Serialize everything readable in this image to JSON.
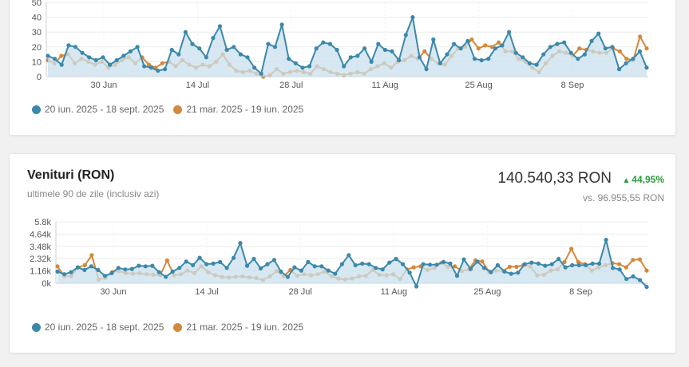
{
  "colors": {
    "current": "#3b88ab",
    "previous": "#d4883a",
    "area": "#c9e0ee",
    "positive": "#2a9d3a"
  },
  "legend": {
    "current": "20 iun. 2025 - 18 sept. 2025",
    "previous": "21 mar. 2025 - 19 iun. 2025"
  },
  "card2": {
    "title": "Venituri (RON)",
    "subtitle": "ultimele 90 de zile (inclusiv azi)",
    "value": "140.540,33 RON",
    "change": "44,95%",
    "compare": "vs. 96.955,55 RON"
  },
  "chart_data": [
    {
      "type": "line",
      "x_tick_labels": [
        "30 Jun",
        "14 Jul",
        "28 Jul",
        "11 Aug",
        "25 Aug",
        "8 Sep"
      ],
      "y_tick_labels": [
        "0",
        "10",
        "20",
        "30",
        "40",
        "50"
      ],
      "ylim": [
        0,
        50
      ],
      "grid": true,
      "legend_position": "bottom-left",
      "series": [
        {
          "name": "20 iun. 2025 - 18 sept. 2025",
          "area": true,
          "values": [
            14,
            12,
            8,
            21,
            20,
            16,
            13,
            11,
            13,
            8,
            11,
            14,
            17,
            20,
            7,
            6,
            4,
            5,
            18,
            15,
            30,
            22,
            19,
            13,
            26,
            34,
            18,
            20,
            15,
            13,
            6,
            2,
            22,
            20,
            35,
            12,
            9,
            6,
            7,
            19,
            23,
            22,
            18,
            7,
            13,
            14,
            19,
            10,
            22,
            18,
            17,
            11,
            28,
            40,
            13,
            5,
            25,
            9,
            15,
            22,
            19,
            24,
            12,
            11,
            12,
            19,
            21,
            30,
            16,
            13,
            9,
            8,
            15,
            20,
            22,
            23,
            16,
            12,
            15,
            24,
            29,
            19,
            20,
            5,
            9,
            12,
            17,
            6
          ]
        },
        {
          "name": "21 mar. 2025 - 19 iun. 2025",
          "area": false,
          "values": [
            11,
            9,
            14,
            15,
            9,
            12,
            10,
            8,
            10,
            6,
            8,
            11,
            13,
            9,
            13,
            8,
            6,
            9,
            10,
            7,
            11,
            8,
            6,
            8,
            7,
            10,
            15,
            8,
            4,
            3,
            4,
            2,
            0,
            1,
            5,
            2,
            3,
            4,
            3,
            2,
            7,
            5,
            3,
            2,
            1,
            2,
            3,
            2,
            5,
            7,
            9,
            6,
            10,
            11,
            14,
            12,
            17,
            12,
            9,
            8,
            14,
            19,
            20,
            25,
            19,
            21,
            20,
            23,
            17,
            17,
            12,
            10,
            6,
            3,
            9,
            14,
            17,
            16,
            14,
            19,
            18,
            17,
            16,
            16,
            19,
            17,
            12,
            11,
            27,
            19
          ]
        }
      ]
    },
    {
      "type": "line",
      "x_tick_labels": [
        "30 Jun",
        "14 Jul",
        "28 Jul",
        "11 Aug",
        "25 Aug",
        "8 Sep"
      ],
      "y_tick_labels": [
        "0k",
        "1.16k",
        "2.32k",
        "3.48k",
        "4.64k",
        "5.8k"
      ],
      "ylim": [
        0,
        5800
      ],
      "grid": true,
      "legend_position": "bottom-left",
      "series": [
        {
          "name": "20 iun. 2025 - 18 sept. 2025",
          "area": true,
          "values": [
            1100,
            850,
            1050,
            1500,
            1250,
            1600,
            1250,
            700,
            950,
            1450,
            1300,
            1350,
            1650,
            1600,
            1650,
            1050,
            600,
            1100,
            1450,
            2050,
            1700,
            2400,
            1800,
            1850,
            2000,
            1450,
            2400,
            3800,
            1650,
            2300,
            1400,
            1800,
            2200,
            1100,
            600,
            1500,
            1200,
            2000,
            1600,
            1600,
            1200,
            900,
            1800,
            2650,
            1700,
            1850,
            1800,
            1450,
            1300,
            1950,
            2300,
            1800,
            1000,
            -300,
            1800,
            1750,
            1750,
            2000,
            1850,
            700,
            2250,
            1350,
            2050,
            1450,
            1050,
            1700,
            1100,
            900,
            1000,
            1800,
            1950,
            1850,
            1650,
            1800,
            2300,
            1500,
            1700,
            1700,
            1700,
            1850,
            1850,
            4100,
            1450,
            1300,
            400,
            650,
            300,
            -350
          ]
        },
        {
          "name": "21 mar. 2025 - 19 iun. 2025",
          "area": false,
          "values": [
            1600,
            650,
            650,
            1500,
            1700,
            2650,
            350,
            500,
            1050,
            1150,
            950,
            900,
            950,
            850,
            800,
            750,
            2150,
            750,
            850,
            1200,
            950,
            1600,
            1050,
            750,
            600,
            550,
            600,
            650,
            550,
            500,
            300,
            650,
            1150,
            650,
            1250,
            700,
            850,
            750,
            850,
            1100,
            650,
            450,
            350,
            450,
            650,
            700,
            1250,
            800,
            750,
            850,
            400,
            1300,
            1500,
            1600,
            1250,
            1450,
            1900,
            1550,
            1600,
            1150,
            1300,
            2150,
            2050,
            1100,
            1200,
            1150,
            1550,
            1550,
            1700,
            1600,
            750,
            800,
            1200,
            1300,
            2000,
            3250,
            2000,
            1800,
            1200,
            1500,
            1700,
            1900,
            1800,
            1500,
            2200,
            2250,
            1200
          ]
        }
      ]
    }
  ]
}
